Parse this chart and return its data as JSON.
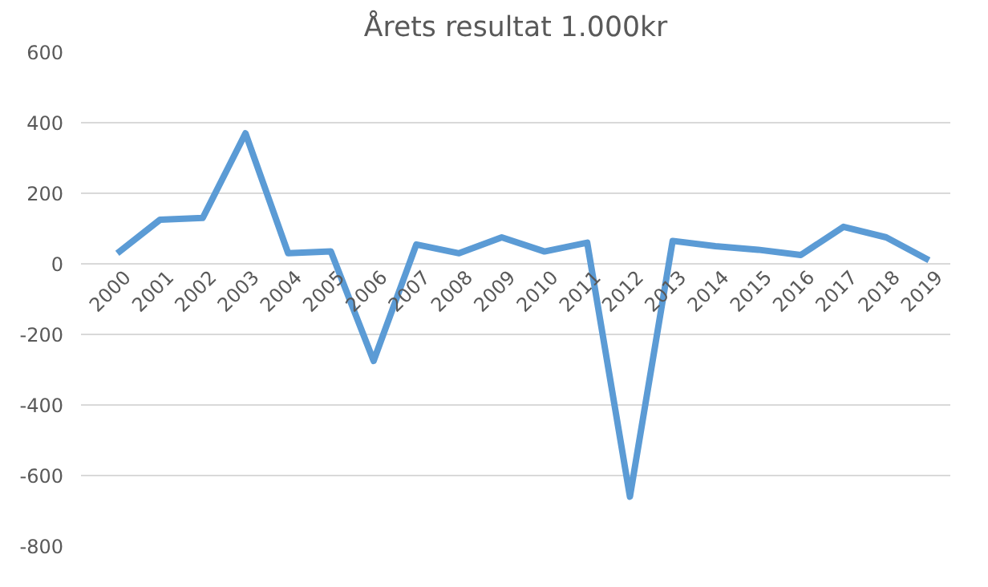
{
  "chart_data": {
    "type": "line",
    "title": "Årets resultat 1.000kr",
    "categories": [
      "2000",
      "2001",
      "2002",
      "2003",
      "2004",
      "2005",
      "2006",
      "2007",
      "2008",
      "2009",
      "2010",
      "2011",
      "2012",
      "2013",
      "2014",
      "2015",
      "2016",
      "2017",
      "2018",
      "2019"
    ],
    "series": [
      {
        "color": "#5b9bd5",
        "values": [
          30,
          125,
          130,
          370,
          30,
          35,
          -275,
          55,
          30,
          75,
          35,
          60,
          -660,
          65,
          50,
          40,
          25,
          105,
          75,
          10
        ]
      }
    ],
    "ylim": [
      -800,
      600
    ],
    "yticks": [
      -800,
      -600,
      -400,
      -200,
      0,
      200,
      400,
      600
    ],
    "grid": "y",
    "marker": "none",
    "line_style": "solid"
  }
}
